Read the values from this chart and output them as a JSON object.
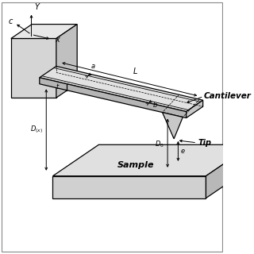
{
  "fig_bg": "#ffffff",
  "line_color": "#000000",
  "lw": 0.9,
  "labels": {
    "cantilever": "Cantilever",
    "sample": "Sample",
    "tip": "Tip",
    "x_axis": "x",
    "y_axis": "Y",
    "length": "L",
    "width_a": "a",
    "width_b": "b",
    "thickness": "t",
    "gap_e": "e",
    "d0": "D_0",
    "dx": "D_{(x)}",
    "c_label": "c"
  }
}
